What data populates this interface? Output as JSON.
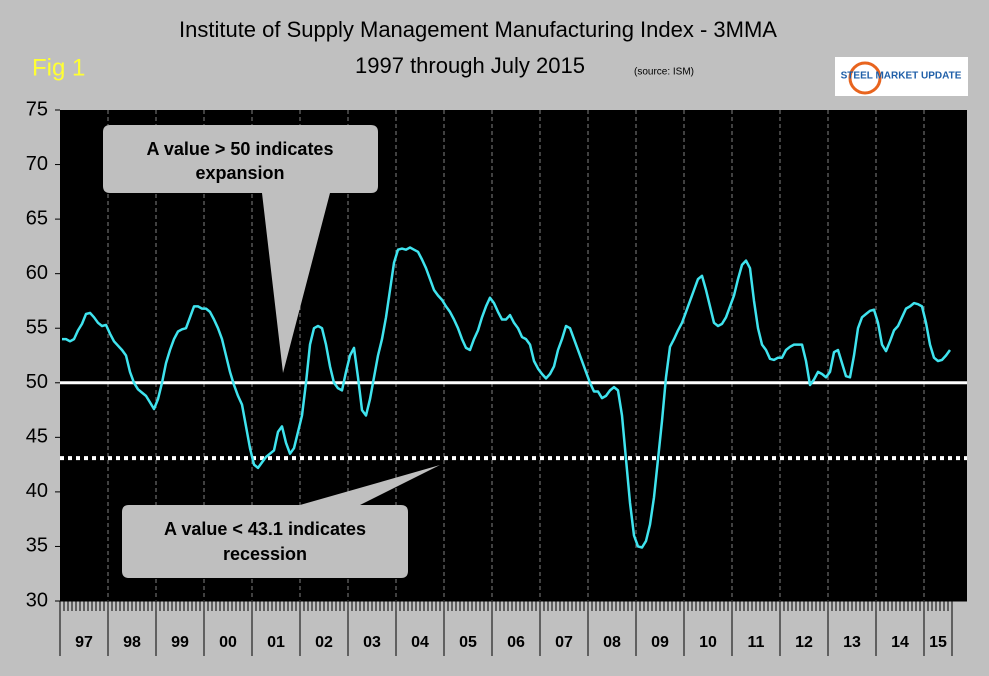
{
  "chart_data": {
    "type": "line",
    "title": "Institute of Supply Management Manufacturing Index - 3MMA",
    "subtitle": "1997 through July 2015",
    "source": "(source: ISM)",
    "figure_label": "Fig 1",
    "logo": "STEEL MARKET UPDATE",
    "year_labels": [
      "97",
      "98",
      "99",
      "00",
      "01",
      "02",
      "03",
      "04",
      "05",
      "06",
      "07",
      "08",
      "09",
      "10",
      "11",
      "12",
      "13",
      "14",
      "15"
    ],
    "series": [
      {
        "name": "ISM Manufacturing Index 3MMA",
        "color": "#3fe3ee",
        "values": [
          54,
          54,
          53.8,
          54,
          54.8,
          55.4,
          56.3,
          56.4,
          56,
          55.5,
          55.2,
          55.3,
          54.5,
          53.8,
          53.4,
          53,
          52.5,
          51,
          50,
          49.4,
          49.1,
          48.8,
          48.2,
          47.6,
          48.5,
          50,
          51.8,
          53,
          54,
          54.7,
          54.9,
          55,
          56,
          57,
          57,
          56.8,
          56.8,
          56.5,
          55.8,
          55,
          54,
          52.5,
          51,
          49.8,
          48.8,
          48,
          46,
          44,
          42.5,
          42.2,
          42.7,
          43.2,
          43.5,
          43.8,
          45.5,
          46,
          44.5,
          43.5,
          44,
          45.5,
          47,
          50,
          53.5,
          55,
          55.2,
          55,
          53.5,
          51.5,
          50,
          49.5,
          49.3,
          51,
          52.5,
          53.2,
          50.5,
          47.5,
          47,
          48.5,
          50.5,
          52.5,
          54,
          56,
          58.5,
          61,
          62.2,
          62.3,
          62.2,
          62.4,
          62.2,
          62,
          61.3,
          60.5,
          59.5,
          58.5,
          58,
          57.6,
          57,
          56.5,
          55.8,
          55,
          54,
          53.2,
          53,
          54,
          54.8,
          56,
          57,
          57.8,
          57.3,
          56.5,
          55.8,
          55.8,
          56.2,
          55.5,
          55,
          54.2,
          54,
          53.5,
          52,
          51.3,
          50.8,
          50.4,
          50.8,
          51.5,
          53,
          54,
          55.2,
          55,
          54,
          53,
          52,
          51,
          50,
          49.2,
          49.2,
          48.6,
          48.8,
          49.3,
          49.6,
          49.3,
          47,
          43,
          39,
          36,
          35,
          34.9,
          35.5,
          37,
          39.5,
          43,
          46.5,
          50.5,
          53.3,
          54,
          54.8,
          55.5,
          56.5,
          57.5,
          58.5,
          59.5,
          59.8,
          58.5,
          57,
          55.5,
          55.2,
          55.4,
          56,
          57,
          58,
          59.5,
          60.8,
          61.2,
          60.5,
          57.5,
          55,
          53.5,
          53,
          52.2,
          52.1,
          52.3,
          52.3,
          53,
          53.3,
          53.5,
          53.5,
          53.5,
          52,
          49.8,
          50.3,
          51,
          50.8,
          50.5,
          51,
          52.8,
          53,
          51.8,
          50.6,
          50.5,
          52.5,
          55,
          56,
          56.3,
          56.6,
          56.7,
          55.5,
          53.5,
          52.9,
          53.8,
          54.8,
          55.2,
          56,
          56.8,
          57,
          57.3,
          57.2,
          57,
          55.5,
          53.5,
          52.3,
          52,
          52.1,
          52.5,
          53
        ]
      }
    ],
    "ylim": [
      30,
      75
    ],
    "yticks": [
      30,
      35,
      40,
      45,
      50,
      55,
      60,
      65,
      70,
      75
    ],
    "vertical_grid": true,
    "reference_lines": [
      {
        "value": 50,
        "style": "solid",
        "color": "#ffffff"
      },
      {
        "value": 43.1,
        "style": "dotted",
        "color": "#ffffff"
      }
    ],
    "annotations": [
      {
        "lines": [
          "A value > 50 indicates",
          "expansion"
        ]
      },
      {
        "lines": [
          "A value < 43.1 indicates",
          "recession"
        ]
      }
    ]
  }
}
